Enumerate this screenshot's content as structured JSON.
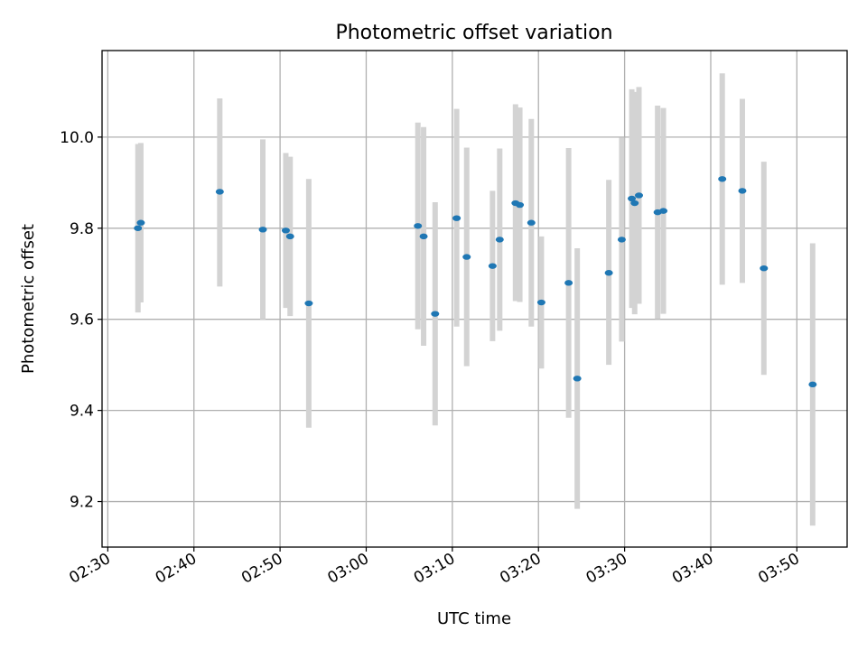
{
  "chart_data": {
    "type": "scatter",
    "title": "Photometric offset variation",
    "xlabel": "UTC time",
    "ylabel": "Photometric offset",
    "xlim": [
      "02:29:20",
      "03:55:50"
    ],
    "ylim": [
      9.1,
      10.19
    ],
    "grid": true,
    "x_ticks": [
      "02:30",
      "02:40",
      "02:50",
      "03:00",
      "03:10",
      "03:20",
      "03:30",
      "03:40",
      "03:50"
    ],
    "y_ticks": [
      "9.2",
      "9.4",
      "9.6",
      "9.8",
      "10.0"
    ],
    "colors": {
      "marker": "#1f77b4",
      "error_bar": "#d3d3d3",
      "grid": "#b0b0b0"
    },
    "points": [
      {
        "time": "02:33:30",
        "offset": 9.8,
        "lower": 9.615,
        "upper": 9.985
      },
      {
        "time": "02:33:50",
        "offset": 9.812,
        "lower": 9.637,
        "upper": 9.987
      },
      {
        "time": "02:43:00",
        "offset": 9.88,
        "lower": 9.672,
        "upper": 10.085
      },
      {
        "time": "02:48:00",
        "offset": 9.797,
        "lower": 9.6,
        "upper": 9.995
      },
      {
        "time": "02:50:40",
        "offset": 9.795,
        "lower": 9.625,
        "upper": 9.965
      },
      {
        "time": "02:51:10",
        "offset": 9.782,
        "lower": 9.607,
        "upper": 9.957
      },
      {
        "time": "02:53:20",
        "offset": 9.635,
        "lower": 9.362,
        "upper": 9.908
      },
      {
        "time": "03:06:00",
        "offset": 9.805,
        "lower": 9.578,
        "upper": 10.032
      },
      {
        "time": "03:06:40",
        "offset": 9.782,
        "lower": 9.542,
        "upper": 10.022
      },
      {
        "time": "03:08:00",
        "offset": 9.612,
        "lower": 9.367,
        "upper": 9.857
      },
      {
        "time": "03:10:30",
        "offset": 9.822,
        "lower": 9.584,
        "upper": 10.062
      },
      {
        "time": "03:11:40",
        "offset": 9.737,
        "lower": 9.497,
        "upper": 9.977
      },
      {
        "time": "03:14:40",
        "offset": 9.717,
        "lower": 9.552,
        "upper": 9.882
      },
      {
        "time": "03:15:30",
        "offset": 9.775,
        "lower": 9.575,
        "upper": 9.975
      },
      {
        "time": "03:17:20",
        "offset": 9.855,
        "lower": 9.64,
        "upper": 10.072
      },
      {
        "time": "03:17:50",
        "offset": 9.851,
        "lower": 9.638,
        "upper": 10.065
      },
      {
        "time": "03:19:10",
        "offset": 9.812,
        "lower": 9.584,
        "upper": 10.04
      },
      {
        "time": "03:20:20",
        "offset": 9.637,
        "lower": 9.492,
        "upper": 9.782
      },
      {
        "time": "03:23:30",
        "offset": 9.68,
        "lower": 9.384,
        "upper": 9.976
      },
      {
        "time": "03:24:30",
        "offset": 9.47,
        "lower": 9.184,
        "upper": 9.756
      },
      {
        "time": "03:28:10",
        "offset": 9.702,
        "lower": 9.5,
        "upper": 9.906
      },
      {
        "time": "03:29:40",
        "offset": 9.775,
        "lower": 9.551,
        "upper": 9.999
      },
      {
        "time": "03:30:50",
        "offset": 9.865,
        "lower": 9.625,
        "upper": 10.105
      },
      {
        "time": "03:31:10",
        "offset": 9.855,
        "lower": 9.611,
        "upper": 10.099
      },
      {
        "time": "03:31:40",
        "offset": 9.872,
        "lower": 9.634,
        "upper": 10.11
      },
      {
        "time": "03:33:50",
        "offset": 9.835,
        "lower": 9.601,
        "upper": 10.069
      },
      {
        "time": "03:34:30",
        "offset": 9.838,
        "lower": 9.612,
        "upper": 10.064
      },
      {
        "time": "03:41:20",
        "offset": 9.908,
        "lower": 9.676,
        "upper": 10.14
      },
      {
        "time": "03:43:40",
        "offset": 9.882,
        "lower": 9.68,
        "upper": 10.084
      },
      {
        "time": "03:46:10",
        "offset": 9.712,
        "lower": 9.478,
        "upper": 9.946
      },
      {
        "time": "03:51:50",
        "offset": 9.457,
        "lower": 9.147,
        "upper": 9.767
      }
    ]
  }
}
